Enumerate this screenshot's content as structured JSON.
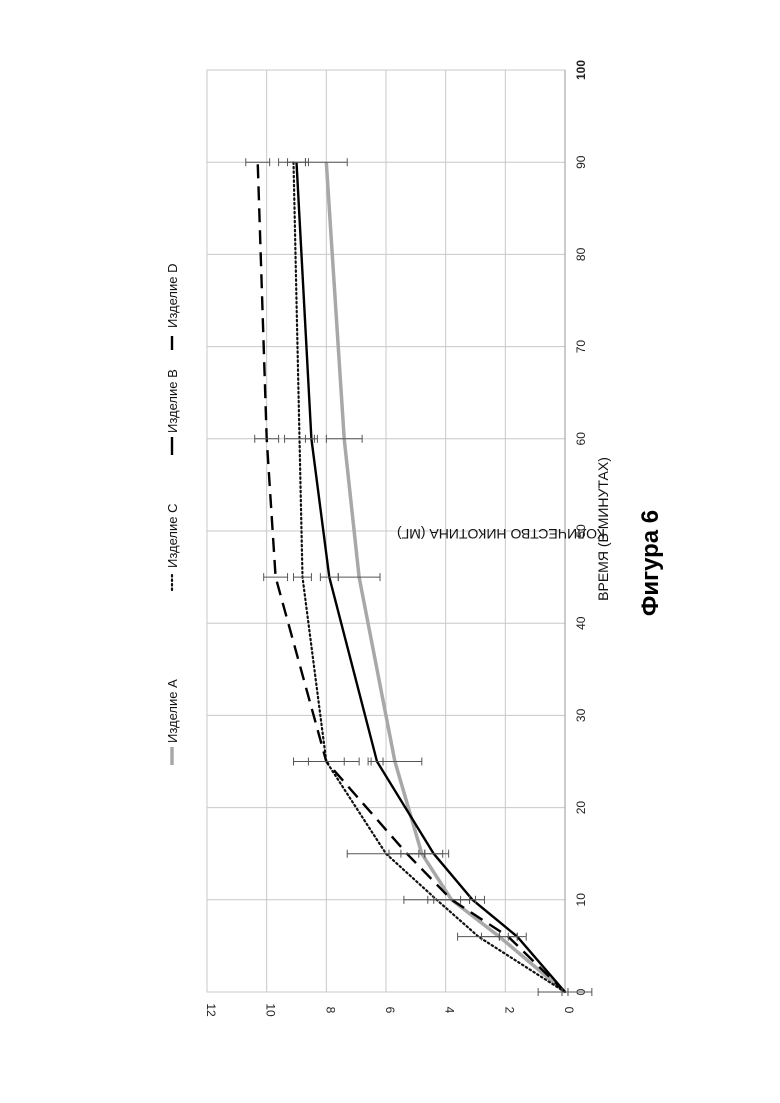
{
  "figure_caption": "Фигура 6",
  "chart_data": {
    "type": "line",
    "xlabel": "ВРЕМЯ (В МИНУТАХ)",
    "ylabel": "КОЛИЧЕСТВО НИКОТИНА (МГ)",
    "xlim": [
      0,
      100
    ],
    "ylim": [
      0,
      12
    ],
    "x_ticks": [
      0,
      10,
      20,
      30,
      40,
      50,
      60,
      70,
      80,
      90,
      100
    ],
    "y_ticks": [
      0,
      2,
      4,
      6,
      8,
      10,
      12
    ],
    "grid": true,
    "legend_position": "top",
    "x": [
      0,
      6,
      10,
      15,
      25,
      45,
      60,
      90
    ],
    "series": [
      {
        "name": "Изделие A",
        "style": "solid",
        "color": "#a8a8a8",
        "values": [
          0,
          2.2,
          3.8,
          4.8,
          5.7,
          6.9,
          7.4,
          8.0
        ],
        "errors": [
          0.9,
          0.6,
          0.8,
          0.7,
          0.9,
          0.7,
          0.6,
          0.7
        ]
      },
      {
        "name": "Изделие C",
        "style": "dotted",
        "color": "#111111",
        "values": [
          0,
          2.9,
          4.3,
          6.0,
          8.0,
          8.8,
          8.9,
          9.1
        ],
        "errors": [
          0.1,
          0.7,
          1.1,
          1.3,
          0.6,
          0.3,
          0.5,
          0.5
        ]
      },
      {
        "name": "Изделие B",
        "style": "solid",
        "color": "#000000",
        "values": [
          0,
          1.6,
          3.1,
          4.4,
          6.3,
          7.9,
          8.5,
          9.0
        ],
        "errors": [
          0.1,
          0.3,
          0.4,
          0.5,
          0.2,
          0.3,
          0.2,
          0.3
        ]
      },
      {
        "name": "Изделие D",
        "style": "dashed",
        "color": "#000000",
        "values": [
          0,
          1.9,
          3.8,
          5.3,
          8.0,
          9.7,
          10.0,
          10.3
        ],
        "errors": [
          0.1,
          0.3,
          0.6,
          0.6,
          1.1,
          0.4,
          0.4,
          0.4
        ]
      }
    ]
  }
}
